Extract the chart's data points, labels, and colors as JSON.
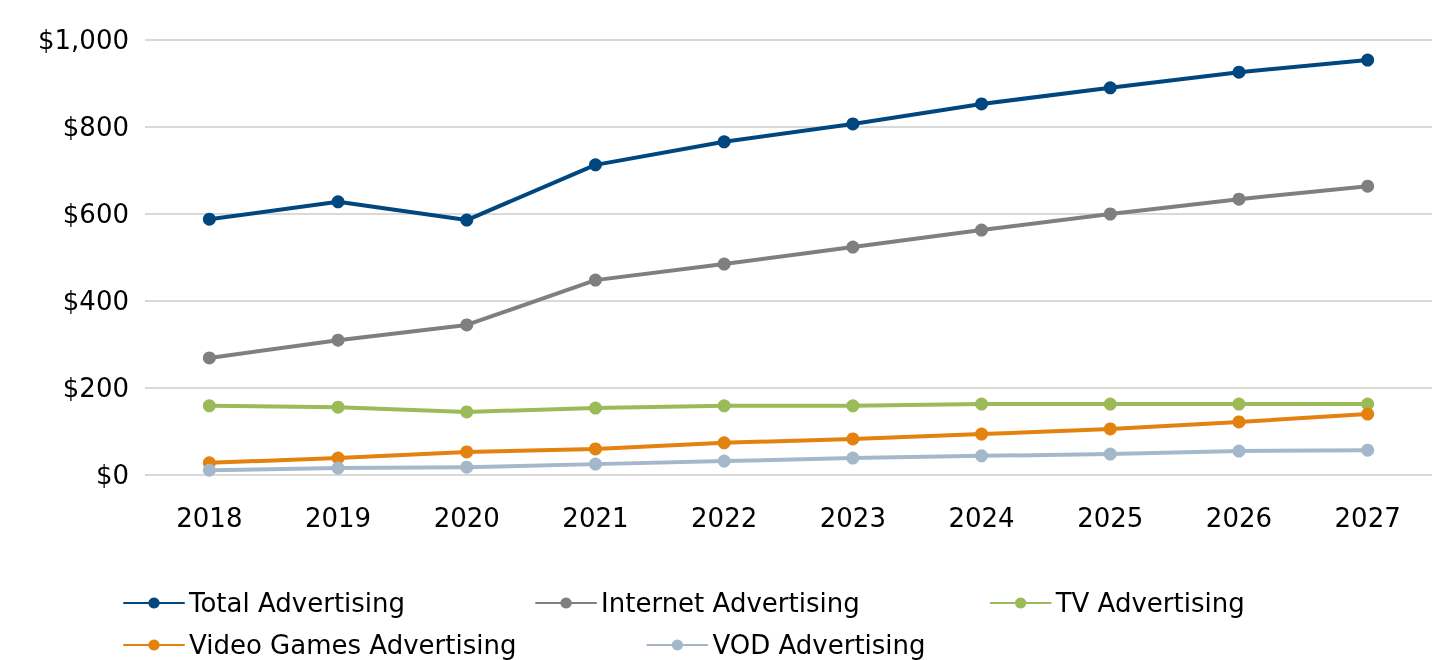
{
  "chart_data": {
    "type": "line",
    "categories": [
      "2018",
      "2019",
      "2020",
      "2021",
      "2022",
      "2023",
      "2024",
      "2025",
      "2026",
      "2027"
    ],
    "series": [
      {
        "name": "Total Advertising",
        "color": "#00467f",
        "values": [
          588,
          628,
          586,
          713,
          766,
          807,
          853,
          890,
          926,
          954
        ]
      },
      {
        "name": "Internet Advertising",
        "color": "#7f7f7f",
        "values": [
          269,
          310,
          345,
          448,
          485,
          524,
          563,
          600,
          634,
          664
        ]
      },
      {
        "name": "TV Advertising",
        "color": "#9bbb59",
        "values": [
          159,
          156,
          145,
          154,
          159,
          159,
          163,
          163,
          163,
          163
        ]
      },
      {
        "name": "Video Games Advertising",
        "color": "#e3820f",
        "values": [
          28,
          39,
          53,
          60,
          74,
          83,
          94,
          106,
          122,
          140
        ]
      },
      {
        "name": "VOD Advertising",
        "color": "#a5b8cb",
        "values": [
          11,
          16,
          18,
          25,
          32,
          39,
          44,
          48,
          55,
          57
        ]
      }
    ],
    "ylim": [
      0,
      1000
    ],
    "yticks": [
      {
        "value": 0,
        "label": "$0"
      },
      {
        "value": 200,
        "label": "$200"
      },
      {
        "value": 400,
        "label": "$400"
      },
      {
        "value": 600,
        "label": "$600"
      },
      {
        "value": 800,
        "label": "$800"
      },
      {
        "value": 1000,
        "label": "$1,000"
      }
    ],
    "grid": "y",
    "legend": "bottom",
    "marker": "circle",
    "line_style": "solid"
  }
}
